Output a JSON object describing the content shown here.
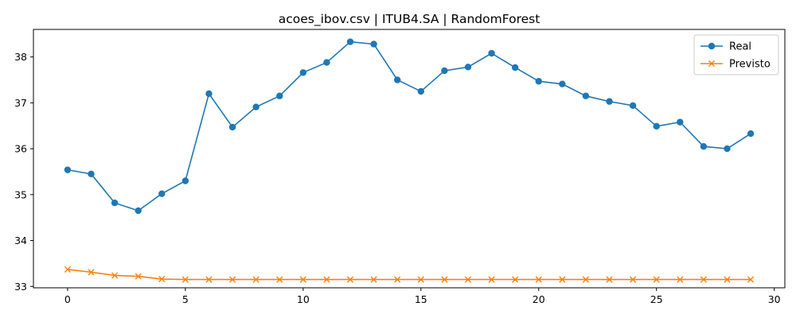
{
  "chart_data": {
    "type": "line",
    "title": "acoes_ibov.csv | ITUB4.SA | RandomForest",
    "xlabel": "",
    "ylabel": "",
    "xlim": [
      -1.45,
      30.45
    ],
    "ylim": [
      32.97,
      38.6
    ],
    "xticks": [
      0,
      5,
      10,
      15,
      20,
      25,
      30
    ],
    "yticks": [
      33,
      34,
      35,
      36,
      37,
      38
    ],
    "x": [
      0,
      1,
      2,
      3,
      4,
      5,
      6,
      7,
      8,
      9,
      10,
      11,
      12,
      13,
      14,
      15,
      16,
      17,
      18,
      19,
      20,
      21,
      22,
      23,
      24,
      25,
      26,
      27,
      28,
      29
    ],
    "series": [
      {
        "name": "Real",
        "color": "#1f77b4",
        "marker": "circle",
        "values": [
          35.54,
          35.45,
          34.82,
          34.65,
          35.02,
          35.3,
          37.2,
          36.47,
          36.91,
          37.15,
          37.66,
          37.88,
          38.33,
          38.28,
          37.5,
          37.25,
          37.7,
          37.78,
          38.08,
          37.77,
          37.47,
          37.41,
          37.15,
          37.03,
          36.94,
          36.49,
          36.58,
          36.05,
          36.0,
          36.33
        ]
      },
      {
        "name": "Previsto",
        "color": "#ff7f0e",
        "marker": "x",
        "values": [
          33.37,
          33.31,
          33.24,
          33.22,
          33.16,
          33.15,
          33.15,
          33.15,
          33.15,
          33.15,
          33.15,
          33.15,
          33.15,
          33.15,
          33.15,
          33.15,
          33.15,
          33.15,
          33.15,
          33.15,
          33.15,
          33.15,
          33.15,
          33.15,
          33.15,
          33.15,
          33.15,
          33.15,
          33.15,
          33.15
        ]
      }
    ],
    "legend": "top-right",
    "grid": false
  }
}
